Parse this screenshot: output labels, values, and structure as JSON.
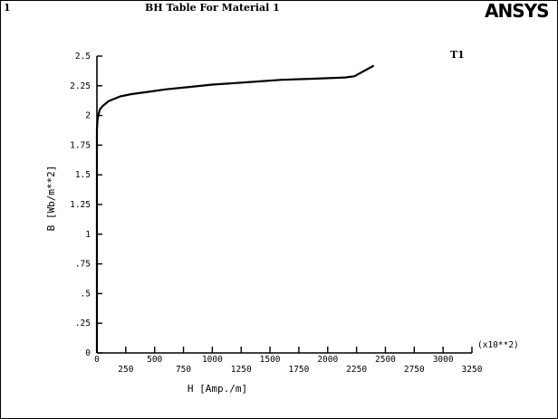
{
  "header": {
    "plot_number": "1",
    "title": "BH   Table For Material     1",
    "logo": "ANSYS",
    "curve_label": "T1",
    "scale_note": "(x10**2)"
  },
  "chart_data": {
    "type": "line",
    "title": "BH   Table For Material     1",
    "xlabel": "H  [Amp./m]",
    "ylabel": "B [Wb/m**2]",
    "x_multiplier": "(x10**2)",
    "xlim": [
      0,
      3250
    ],
    "ylim": [
      0,
      2.5
    ],
    "grid": false,
    "x_ticks_upper": [
      {
        "value": 0,
        "label": "0"
      },
      {
        "value": 500,
        "label": "500"
      },
      {
        "value": 1000,
        "label": "1000"
      },
      {
        "value": 1500,
        "label": "1500"
      },
      {
        "value": 2000,
        "label": "2000"
      },
      {
        "value": 2500,
        "label": "2500"
      },
      {
        "value": 3000,
        "label": "3000"
      }
    ],
    "x_ticks_lower": [
      {
        "value": 250,
        "label": "250"
      },
      {
        "value": 750,
        "label": "750"
      },
      {
        "value": 1250,
        "label": "1250"
      },
      {
        "value": 1750,
        "label": "1750"
      },
      {
        "value": 2250,
        "label": "2250"
      },
      {
        "value": 2750,
        "label": "2750"
      },
      {
        "value": 3250,
        "label": "3250"
      }
    ],
    "y_ticks": [
      {
        "value": 0,
        "label": "0"
      },
      {
        "value": 0.25,
        "label": ".25"
      },
      {
        "value": 0.5,
        "label": ".5"
      },
      {
        "value": 0.75,
        "label": ".75"
      },
      {
        "value": 1,
        "label": "1"
      },
      {
        "value": 1.25,
        "label": "1.25"
      },
      {
        "value": 1.5,
        "label": "1.5"
      },
      {
        "value": 1.75,
        "label": "1.75"
      },
      {
        "value": 2,
        "label": "2"
      },
      {
        "value": 2.25,
        "label": "2.25"
      },
      {
        "value": 2.5,
        "label": "2.5"
      }
    ],
    "series": [
      {
        "name": "T1",
        "x": [
          0,
          5,
          12,
          25,
          50,
          100,
          200,
          300,
          450,
          600,
          800,
          1000,
          1300,
          1600,
          1900,
          2150,
          2230,
          2400
        ],
        "y": [
          1.88,
          1.96,
          2.0,
          2.05,
          2.08,
          2.12,
          2.16,
          2.18,
          2.2,
          2.22,
          2.24,
          2.26,
          2.28,
          2.3,
          2.31,
          2.32,
          2.33,
          2.42
        ]
      }
    ]
  }
}
